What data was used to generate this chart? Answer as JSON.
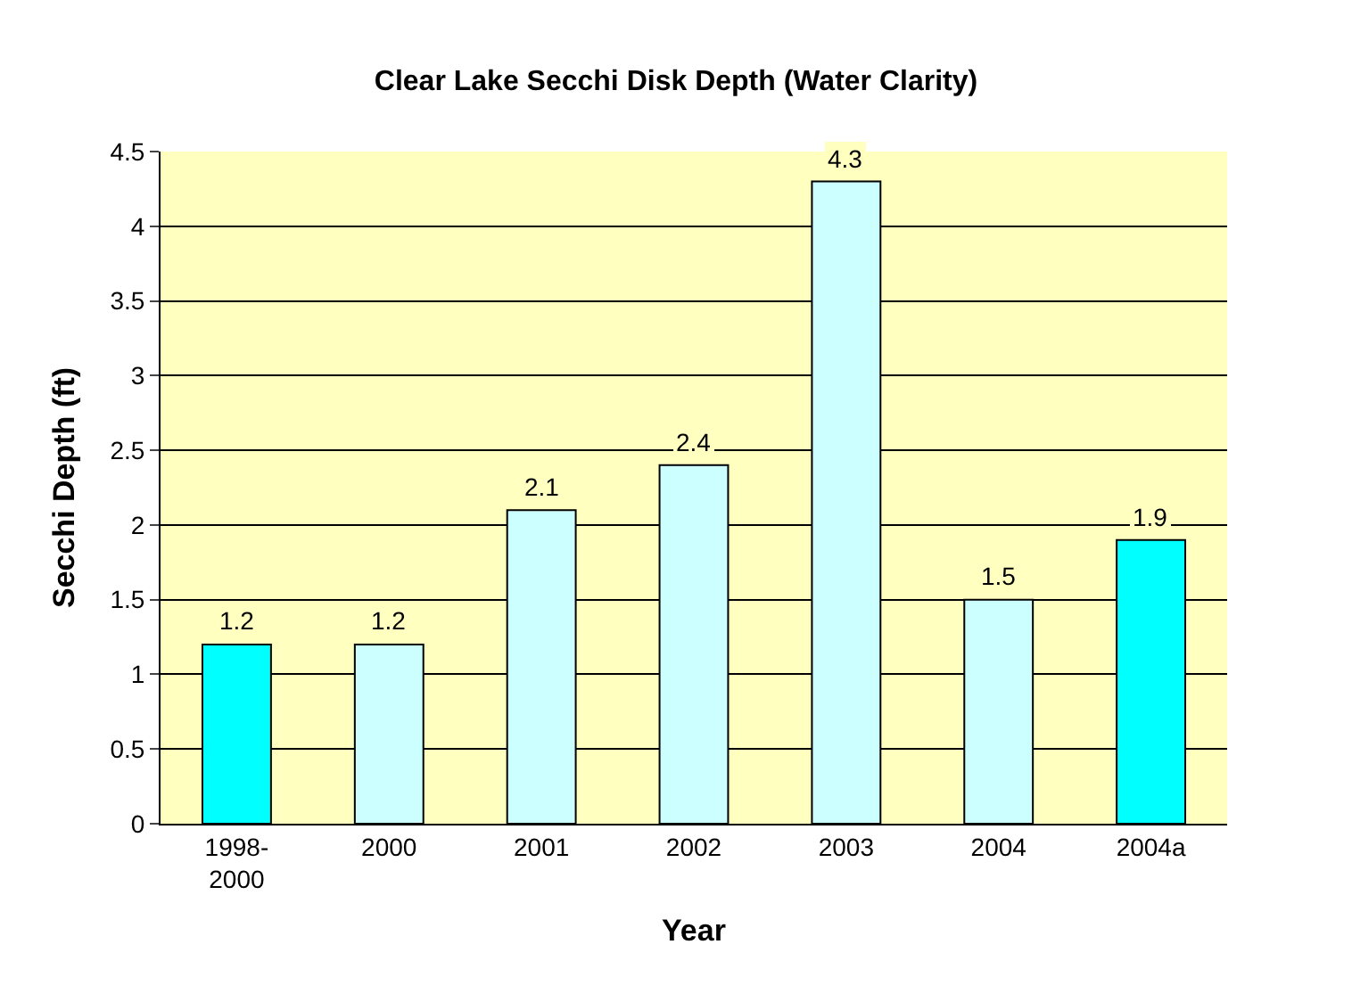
{
  "chart_data": {
    "type": "bar",
    "title": "Clear Lake Secchi Disk Depth (Water Clarity)",
    "xlabel": "Year",
    "ylabel": "Secchi Depth (ft)",
    "categories": [
      "1998-2000",
      "2000",
      "2001",
      "2002",
      "2003",
      "2004",
      "2004a"
    ],
    "values": [
      1.2,
      1.2,
      2.1,
      2.4,
      4.3,
      1.5,
      1.9
    ],
    "colors": [
      "#00ffff",
      "#ccffff",
      "#ccffff",
      "#ccffff",
      "#ccffff",
      "#ccffff",
      "#00ffff"
    ],
    "ylim": [
      0,
      4.5
    ],
    "yticks": [
      0,
      0.5,
      1,
      1.5,
      2,
      2.5,
      3,
      3.5,
      4,
      4.5
    ],
    "grid": "y",
    "data_labels": true
  }
}
